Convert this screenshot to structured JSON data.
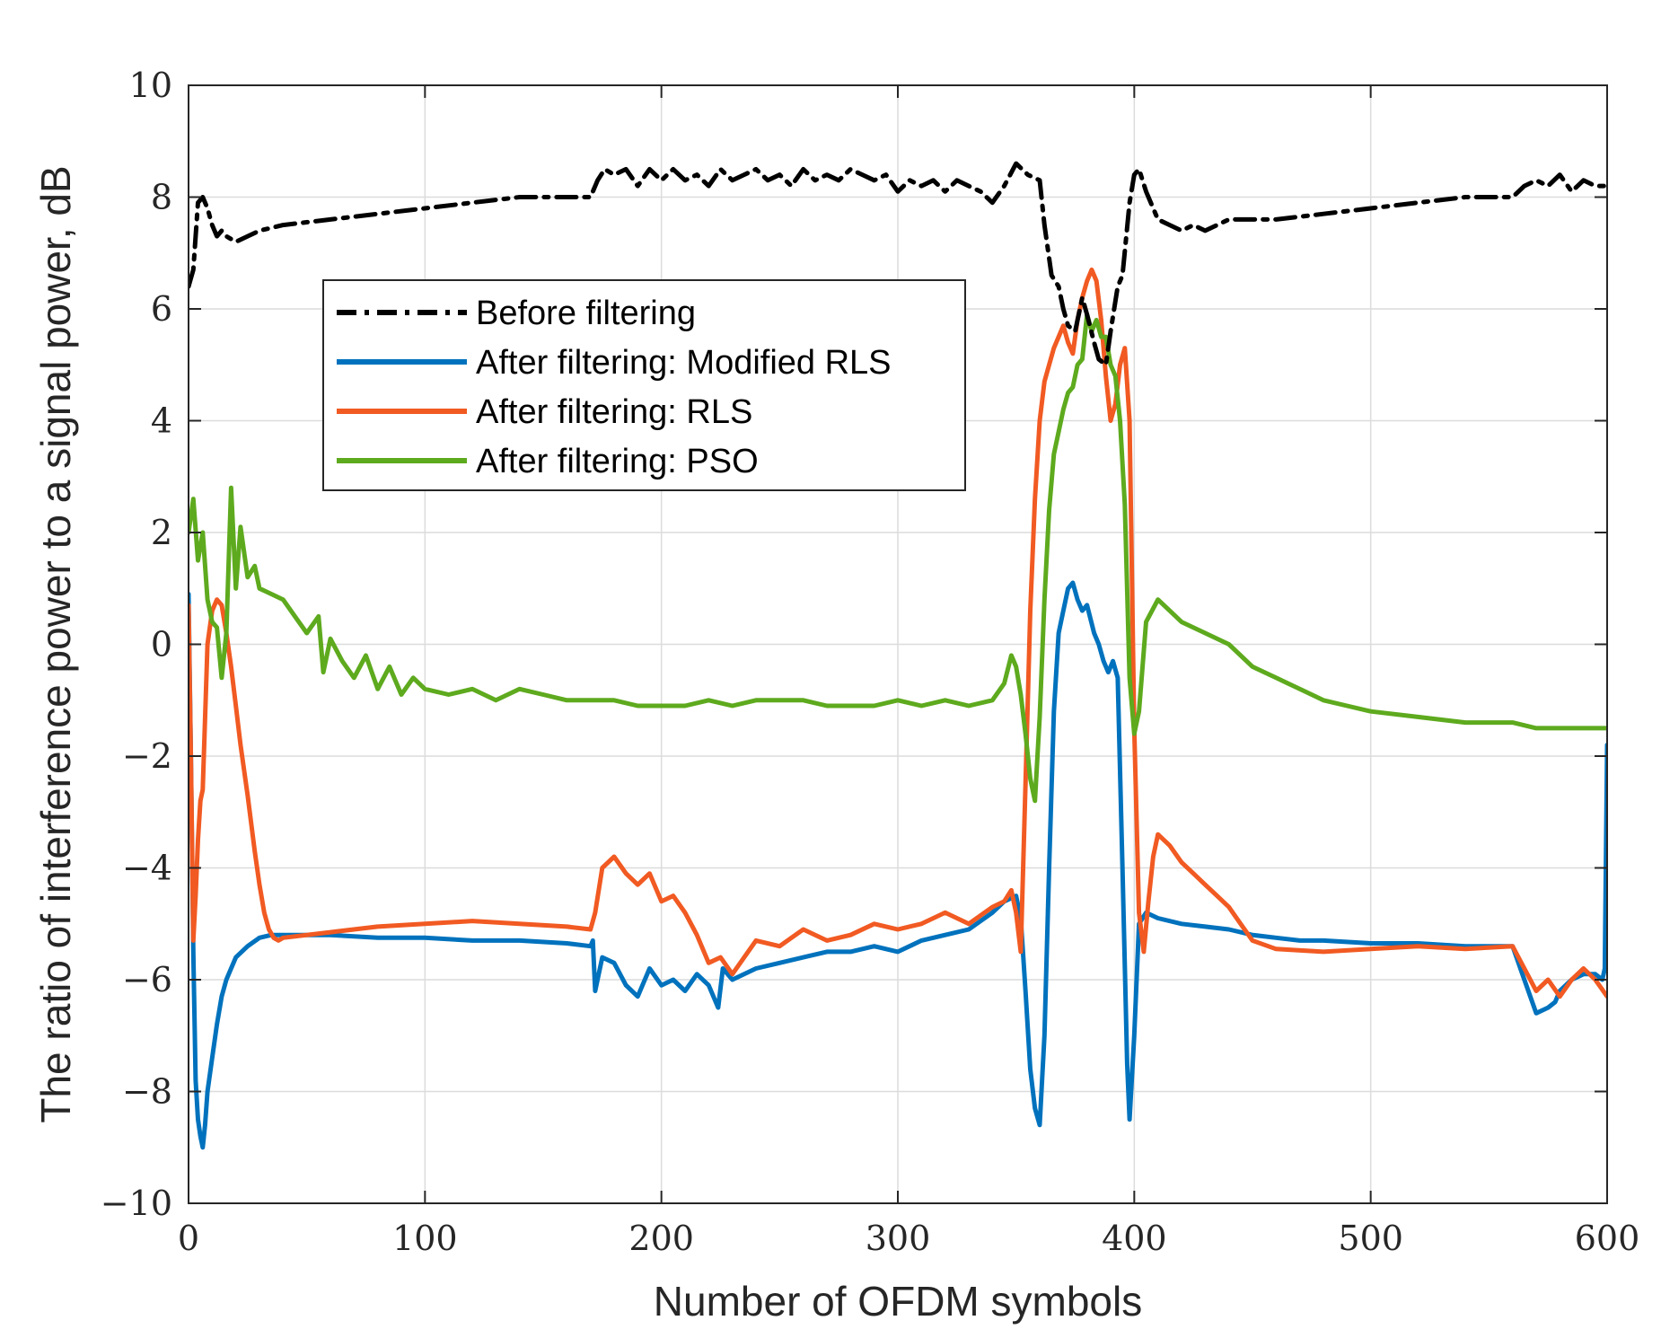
{
  "chart_data": {
    "type": "line",
    "xlabel": "Number of OFDM symbols",
    "ylabel": "The ratio of interference power to a signal power, dB",
    "xlim": [
      0,
      600
    ],
    "ylim": [
      -10,
      10
    ],
    "xticks": [
      0,
      100,
      200,
      300,
      400,
      500,
      600
    ],
    "yticks": [
      -10,
      -8,
      -6,
      -4,
      -2,
      0,
      2,
      4,
      6,
      8,
      10
    ],
    "xtick_labels": [
      "0",
      "100",
      "200",
      "300",
      "400",
      "500",
      "600"
    ],
    "ytick_labels": [
      "−10",
      "−8",
      "−6",
      "−4",
      "−2",
      "0",
      "2",
      "4",
      "6",
      "8",
      "10"
    ],
    "grid": true,
    "legend_position": "upper-left (inside)",
    "series": [
      {
        "name": "Before filtering",
        "color": "#000000",
        "style": "dash-dot",
        "x": [
          0,
          2,
          4,
          6,
          8,
          10,
          12,
          14,
          16,
          20,
          25,
          30,
          40,
          60,
          80,
          100,
          120,
          140,
          160,
          170,
          173,
          176,
          180,
          185,
          190,
          195,
          200,
          205,
          210,
          215,
          220,
          225,
          230,
          235,
          240,
          245,
          250,
          255,
          260,
          265,
          270,
          275,
          280,
          285,
          290,
          295,
          300,
          305,
          310,
          315,
          320,
          325,
          330,
          335,
          340,
          345,
          350,
          355,
          360,
          362,
          365,
          368,
          370,
          372,
          375,
          378,
          380,
          383,
          385,
          388,
          390,
          393,
          395,
          398,
          400,
          402,
          405,
          410,
          415,
          420,
          425,
          430,
          440,
          460,
          480,
          500,
          520,
          540,
          560,
          565,
          570,
          575,
          580,
          585,
          590,
          595,
          600
        ],
        "y": [
          6.4,
          6.7,
          7.9,
          8.0,
          7.8,
          7.5,
          7.3,
          7.4,
          7.3,
          7.2,
          7.3,
          7.4,
          7.5,
          7.6,
          7.7,
          7.8,
          7.9,
          8.0,
          8.0,
          8.0,
          8.3,
          8.5,
          8.4,
          8.5,
          8.2,
          8.5,
          8.3,
          8.5,
          8.3,
          8.4,
          8.2,
          8.5,
          8.3,
          8.4,
          8.5,
          8.3,
          8.4,
          8.2,
          8.5,
          8.3,
          8.4,
          8.3,
          8.5,
          8.4,
          8.3,
          8.4,
          8.1,
          8.3,
          8.2,
          8.3,
          8.1,
          8.3,
          8.2,
          8.1,
          7.9,
          8.2,
          8.6,
          8.4,
          8.3,
          7.5,
          6.6,
          6.4,
          6.0,
          5.7,
          5.6,
          6.2,
          5.9,
          5.4,
          5.1,
          5.0,
          5.6,
          6.4,
          6.6,
          7.9,
          8.4,
          8.5,
          8.1,
          7.6,
          7.5,
          7.4,
          7.5,
          7.4,
          7.6,
          7.6,
          7.7,
          7.8,
          7.9,
          8.0,
          8.0,
          8.2,
          8.3,
          8.2,
          8.4,
          8.1,
          8.3,
          8.2,
          8.2
        ]
      },
      {
        "name": "After filtering: Modified RLS",
        "color": "#0072bd",
        "style": "solid",
        "x": [
          0,
          1,
          2,
          3,
          4,
          5,
          6,
          7,
          8,
          10,
          12,
          14,
          16,
          18,
          20,
          25,
          30,
          35,
          40,
          60,
          80,
          100,
          120,
          140,
          160,
          170,
          171,
          172,
          175,
          180,
          185,
          190,
          195,
          200,
          205,
          210,
          215,
          220,
          224,
          226,
          230,
          240,
          250,
          260,
          270,
          280,
          290,
          300,
          310,
          320,
          330,
          340,
          345,
          350,
          352,
          354,
          356,
          358,
          360,
          362,
          364,
          366,
          368,
          370,
          372,
          374,
          376,
          378,
          380,
          383,
          385,
          387,
          389,
          391,
          393,
          395,
          397,
          398,
          400,
          402,
          405,
          410,
          420,
          430,
          440,
          450,
          460,
          470,
          480,
          500,
          520,
          540,
          560,
          565,
          570,
          575,
          578,
          580,
          585,
          590,
          595,
          598,
          599,
          600
        ],
        "y": [
          0.9,
          -2.0,
          -5.5,
          -7.8,
          -8.5,
          -8.8,
          -9.0,
          -8.6,
          -8.0,
          -7.4,
          -6.8,
          -6.3,
          -6.0,
          -5.8,
          -5.6,
          -5.4,
          -5.25,
          -5.2,
          -5.2,
          -5.2,
          -5.25,
          -5.25,
          -5.3,
          -5.3,
          -5.35,
          -5.4,
          -5.3,
          -6.2,
          -5.6,
          -5.7,
          -6.1,
          -6.3,
          -5.8,
          -6.1,
          -6.0,
          -6.2,
          -5.9,
          -6.1,
          -6.5,
          -5.8,
          -6.0,
          -5.8,
          -5.7,
          -5.6,
          -5.5,
          -5.5,
          -5.4,
          -5.5,
          -5.3,
          -5.2,
          -5.1,
          -4.8,
          -4.6,
          -4.5,
          -4.9,
          -6.2,
          -7.6,
          -8.3,
          -8.6,
          -7.0,
          -4.0,
          -1.2,
          0.2,
          0.6,
          1.0,
          1.1,
          0.8,
          0.6,
          0.7,
          0.2,
          0.0,
          -0.3,
          -0.5,
          -0.3,
          -0.6,
          -4.0,
          -7.5,
          -8.5,
          -7.0,
          -5.0,
          -4.8,
          -4.9,
          -5.0,
          -5.05,
          -5.1,
          -5.2,
          -5.25,
          -5.3,
          -5.3,
          -5.35,
          -5.35,
          -5.4,
          -5.4,
          -6.0,
          -6.6,
          -6.5,
          -6.4,
          -6.2,
          -6.0,
          -5.9,
          -5.9,
          -6.0,
          -5.8,
          -1.8
        ]
      },
      {
        "name": "After filtering: RLS",
        "color": "#f15a22",
        "style": "solid",
        "x": [
          0,
          1,
          2,
          3,
          4,
          5,
          6,
          8,
          10,
          12,
          14,
          16,
          18,
          20,
          22,
          25,
          28,
          30,
          32,
          34,
          36,
          38,
          40,
          60,
          80,
          100,
          120,
          140,
          160,
          170,
          172,
          175,
          180,
          185,
          190,
          195,
          200,
          205,
          210,
          215,
          220,
          225,
          230,
          240,
          250,
          260,
          270,
          280,
          290,
          300,
          310,
          320,
          330,
          340,
          345,
          348,
          350,
          352,
          354,
          356,
          358,
          360,
          362,
          364,
          366,
          368,
          370,
          372,
          374,
          376,
          378,
          380,
          382,
          384,
          386,
          388,
          390,
          392,
          394,
          396,
          398,
          400,
          402,
          404,
          406,
          408,
          410,
          415,
          420,
          425,
          430,
          435,
          440,
          445,
          450,
          460,
          480,
          500,
          520,
          540,
          560,
          565,
          570,
          575,
          580,
          585,
          590,
          595,
          600
        ],
        "y": [
          0.7,
          -2.0,
          -5.3,
          -4.5,
          -3.5,
          -2.8,
          -2.6,
          0.0,
          0.6,
          0.8,
          0.7,
          0.2,
          -0.4,
          -1.1,
          -1.8,
          -2.7,
          -3.7,
          -4.3,
          -4.8,
          -5.1,
          -5.25,
          -5.3,
          -5.25,
          -5.15,
          -5.05,
          -5.0,
          -4.95,
          -5.0,
          -5.05,
          -5.1,
          -4.8,
          -4.0,
          -3.8,
          -4.1,
          -4.3,
          -4.1,
          -4.6,
          -4.5,
          -4.8,
          -5.2,
          -5.7,
          -5.6,
          -5.9,
          -5.3,
          -5.4,
          -5.1,
          -5.3,
          -5.2,
          -5.0,
          -5.1,
          -5.0,
          -4.8,
          -5.0,
          -4.7,
          -4.6,
          -4.4,
          -4.8,
          -5.5,
          -2.5,
          0.6,
          2.6,
          4.0,
          4.7,
          5.0,
          5.3,
          5.5,
          5.7,
          5.4,
          5.2,
          5.8,
          6.2,
          6.5,
          6.7,
          6.5,
          5.8,
          4.8,
          4.0,
          4.3,
          5.0,
          5.3,
          4.0,
          -1.5,
          -4.8,
          -5.5,
          -4.6,
          -3.8,
          -3.4,
          -3.6,
          -3.9,
          -4.1,
          -4.3,
          -4.5,
          -4.7,
          -5.0,
          -5.3,
          -5.45,
          -5.5,
          -5.45,
          -5.4,
          -5.45,
          -5.4,
          -5.8,
          -6.2,
          -6.0,
          -6.3,
          -6.0,
          -5.8,
          -6.0,
          -6.3
        ]
      },
      {
        "name": "After filtering: PSO",
        "color": "#5eaa1e",
        "style": "solid",
        "x": [
          0,
          2,
          4,
          6,
          8,
          10,
          12,
          14,
          16,
          18,
          20,
          22,
          25,
          28,
          30,
          35,
          40,
          45,
          50,
          55,
          57,
          60,
          65,
          70,
          75,
          80,
          85,
          90,
          95,
          100,
          110,
          120,
          130,
          140,
          150,
          160,
          170,
          180,
          190,
          200,
          210,
          220,
          230,
          240,
          250,
          260,
          270,
          280,
          290,
          300,
          310,
          320,
          330,
          340,
          345,
          348,
          350,
          352,
          354,
          356,
          358,
          360,
          362,
          364,
          366,
          368,
          370,
          372,
          374,
          376,
          378,
          380,
          382,
          384,
          386,
          388,
          390,
          392,
          394,
          396,
          398,
          400,
          402,
          405,
          410,
          415,
          420,
          430,
          440,
          450,
          460,
          470,
          480,
          490,
          500,
          520,
          540,
          560,
          570,
          580,
          590,
          600
        ],
        "y": [
          2.0,
          2.6,
          1.5,
          2.0,
          0.8,
          0.4,
          0.3,
          -0.6,
          0.2,
          2.8,
          1.0,
          2.1,
          1.2,
          1.4,
          1.0,
          0.9,
          0.8,
          0.5,
          0.2,
          0.5,
          -0.5,
          0.1,
          -0.3,
          -0.6,
          -0.2,
          -0.8,
          -0.4,
          -0.9,
          -0.6,
          -0.8,
          -0.9,
          -0.8,
          -1.0,
          -0.8,
          -0.9,
          -1.0,
          -1.0,
          -1.0,
          -1.1,
          -1.1,
          -1.1,
          -1.0,
          -1.1,
          -1.0,
          -1.0,
          -1.0,
          -1.1,
          -1.1,
          -1.1,
          -1.0,
          -1.1,
          -1.0,
          -1.1,
          -1.0,
          -0.7,
          -0.2,
          -0.4,
          -0.9,
          -1.6,
          -2.4,
          -2.8,
          -1.3,
          0.8,
          2.4,
          3.4,
          3.8,
          4.2,
          4.5,
          4.6,
          5.0,
          5.1,
          5.9,
          5.6,
          5.8,
          5.5,
          5.5,
          5.0,
          4.8,
          4.0,
          2.5,
          -0.6,
          -1.6,
          -1.2,
          0.4,
          0.8,
          0.6,
          0.4,
          0.2,
          0.0,
          -0.4,
          -0.6,
          -0.8,
          -1.0,
          -1.1,
          -1.2,
          -1.3,
          -1.4,
          -1.4,
          -1.5,
          -1.5,
          -1.5,
          -1.5
        ]
      }
    ]
  }
}
